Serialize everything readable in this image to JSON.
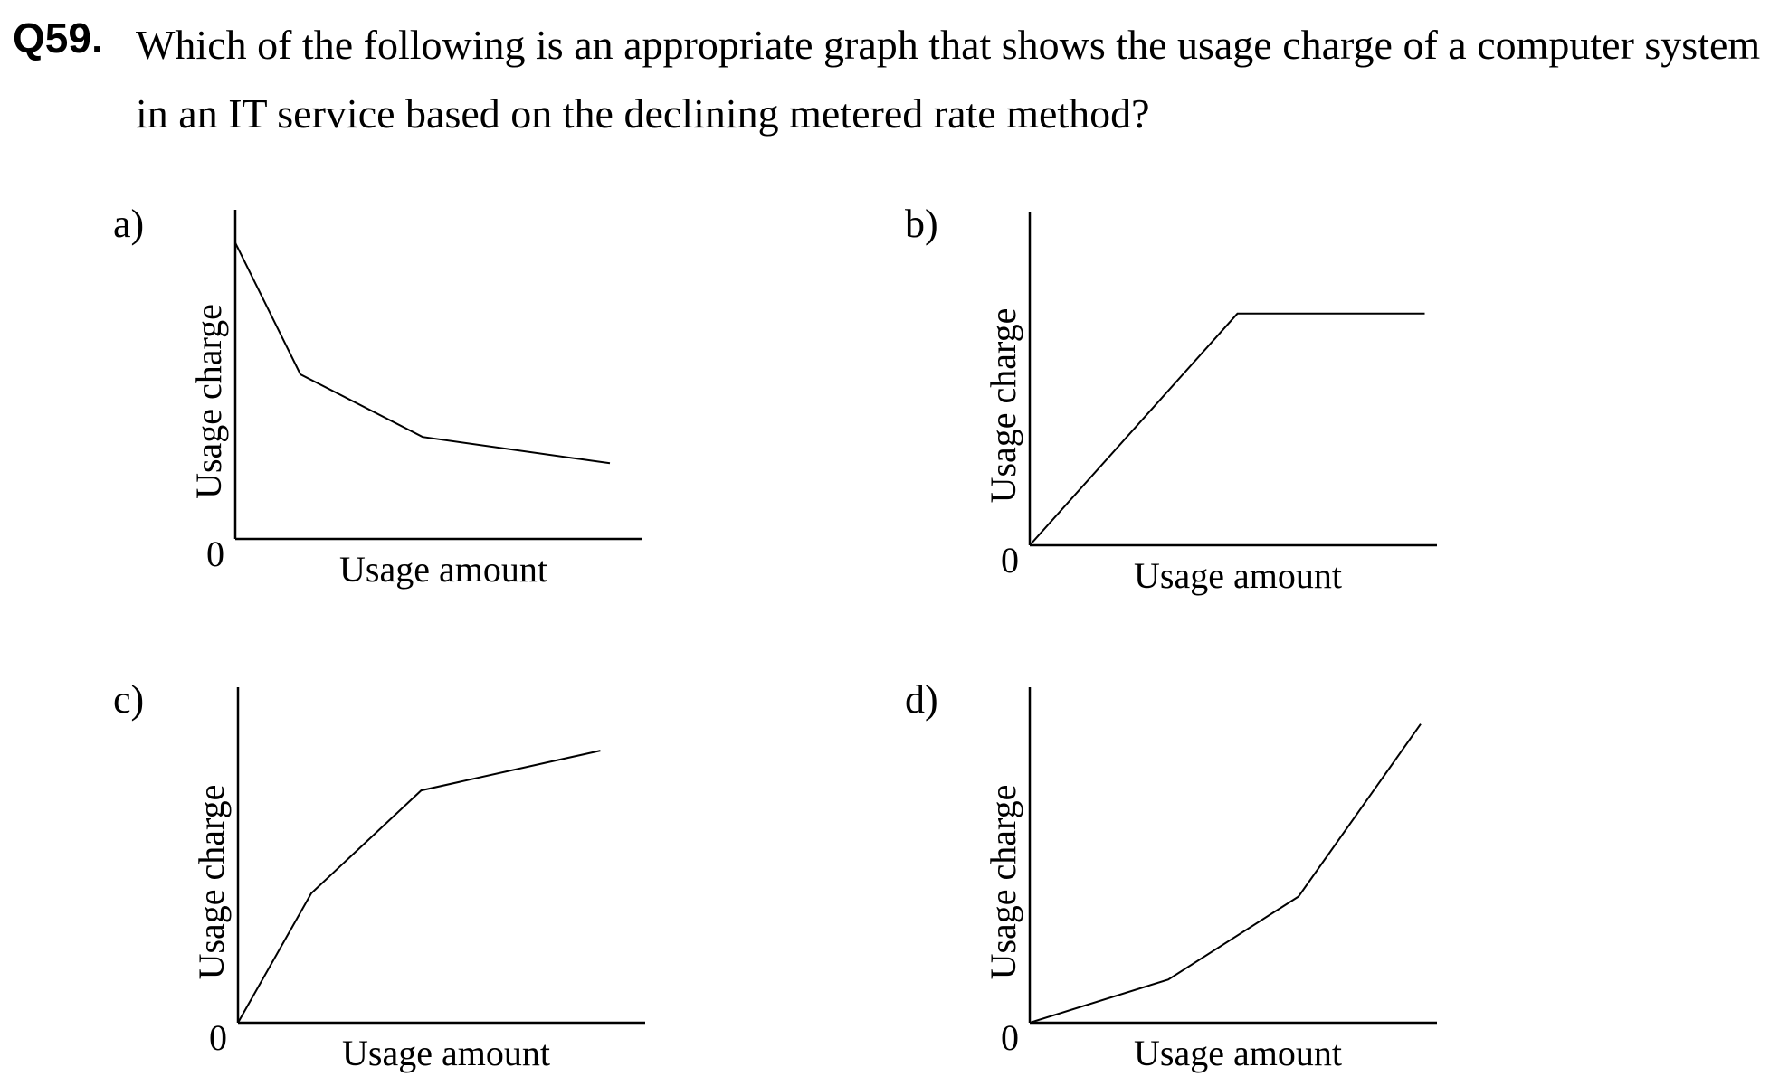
{
  "question": {
    "number": "Q59.",
    "text": "Which of the following is an appropriate graph that shows the usage charge of a computer system in an IT service based on the declining metered rate method?"
  },
  "chart_data": [
    {
      "type": "line",
      "option_label": "a)",
      "xlabel": "Usage amount",
      "ylabel": "Usage charge",
      "origin_label": "0",
      "xlim": [
        0,
        100
      ],
      "ylim": [
        0,
        100
      ],
      "x": [
        0,
        16,
        46,
        92
      ],
      "y": [
        90,
        50,
        31,
        23
      ]
    },
    {
      "type": "line",
      "option_label": "b)",
      "xlabel": "Usage amount",
      "ylabel": "Usage charge",
      "origin_label": "0",
      "xlim": [
        0,
        100
      ],
      "ylim": [
        0,
        100
      ],
      "x": [
        0,
        51,
        97
      ],
      "y": [
        0,
        70,
        70
      ]
    },
    {
      "type": "line",
      "option_label": "c)",
      "xlabel": "Usage amount",
      "ylabel": "Usage charge",
      "origin_label": "0",
      "xlim": [
        0,
        100
      ],
      "ylim": [
        0,
        100
      ],
      "x": [
        0,
        18,
        45,
        89
      ],
      "y": [
        0,
        39,
        70,
        82
      ]
    },
    {
      "type": "line",
      "option_label": "d)",
      "xlabel": "Usage amount",
      "ylabel": "Usage charge",
      "origin_label": "0",
      "xlim": [
        0,
        100
      ],
      "ylim": [
        0,
        100
      ],
      "x": [
        0,
        34,
        66,
        96
      ],
      "y": [
        0,
        13,
        38,
        90
      ]
    }
  ]
}
